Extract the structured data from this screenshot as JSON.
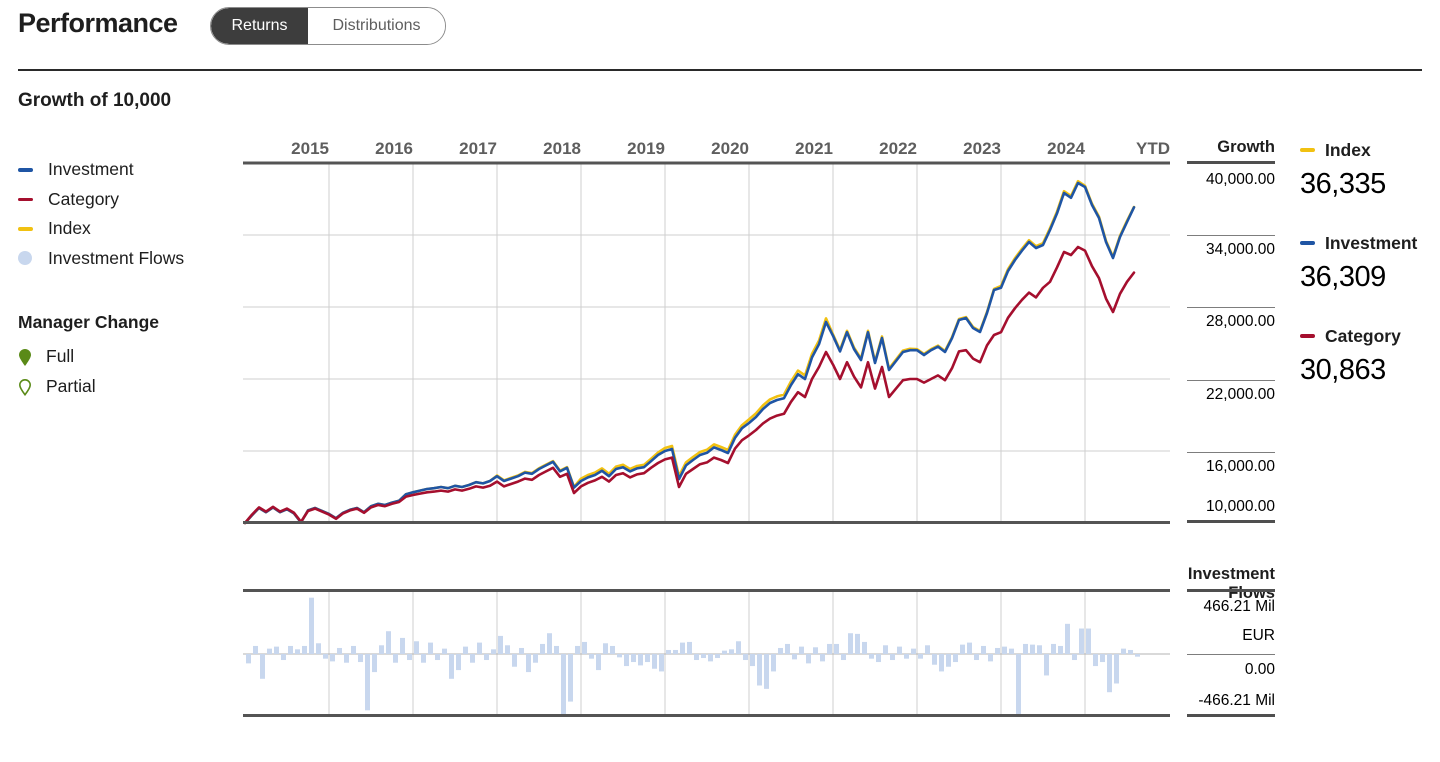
{
  "header": {
    "title": "Performance",
    "tabs": [
      {
        "label": "Returns",
        "selected": true
      },
      {
        "label": "Distributions",
        "selected": false
      }
    ]
  },
  "section": {
    "title": "Growth of 10,000"
  },
  "legend": {
    "items": [
      {
        "label": "Investment",
        "color": "#1f55a4",
        "type": "line"
      },
      {
        "label": "Category",
        "color": "#a50f2e",
        "type": "line"
      },
      {
        "label": "Index",
        "color": "#f1c111",
        "type": "line"
      },
      {
        "label": "Investment Flows",
        "color": "#c8d7ee",
        "type": "dot"
      }
    ]
  },
  "manager_change": {
    "title": "Manager Change",
    "color": "#5a8a17",
    "items": [
      {
        "label": "Full",
        "style": "filled"
      },
      {
        "label": "Partial",
        "style": "outline"
      }
    ]
  },
  "growth_axis": {
    "title": "Growth",
    "ticks": [
      "40,000.00",
      "34,000.00",
      "28,000.00",
      "22,000.00",
      "16,000.00",
      "10,000.00"
    ]
  },
  "flows_axis": {
    "title": "Investment Flows",
    "ticks": [
      "466.21 Mil",
      "EUR",
      "0.00",
      "-466.21 Mil"
    ]
  },
  "summary": [
    {
      "label": "Index",
      "value": "36,335",
      "color": "#f1c111"
    },
    {
      "label": "Investment",
      "value": "36,309",
      "color": "#1f55a4"
    },
    {
      "label": "Category",
      "value": "30,863",
      "color": "#a50f2e"
    }
  ],
  "chart_data": {
    "type": [
      "line",
      "bar"
    ],
    "x_labels": [
      "2015",
      "2016",
      "2017",
      "2018",
      "2019",
      "2020",
      "2021",
      "2022",
      "2023",
      "2024",
      "YTD"
    ],
    "x_monthly_start": "2015-01",
    "growth": {
      "ylim": [
        10000,
        40000
      ],
      "gridlines": [
        40000,
        34000,
        28000,
        22000,
        16000,
        10000
      ],
      "series": [
        {
          "name": "Index",
          "color": "#f1c111",
          "values": [
            10000,
            10650,
            11250,
            10900,
            11300,
            10900,
            11150,
            10800,
            10050,
            11050,
            11250,
            11000,
            10750,
            10400,
            10850,
            11100,
            11250,
            10900,
            11400,
            11600,
            11500,
            11700,
            11850,
            12400,
            12560,
            12700,
            12830,
            12900,
            13000,
            12900,
            13100,
            13000,
            13170,
            13400,
            13300,
            13500,
            13960,
            13560,
            13760,
            13960,
            14260,
            14160,
            14560,
            14860,
            15160,
            14360,
            14660,
            13010,
            13700,
            14000,
            14200,
            14550,
            14100,
            14700,
            14850,
            14500,
            14750,
            14850,
            15350,
            15870,
            16250,
            16420,
            13910,
            15050,
            15500,
            15920,
            16100,
            16550,
            16330,
            16080,
            17350,
            18150,
            18630,
            19130,
            19800,
            20300,
            20550,
            20700,
            21800,
            22700,
            22300,
            24100,
            25200,
            27050,
            25720,
            24420,
            26020,
            24620,
            23700,
            26020,
            23450,
            25540,
            22870,
            23620,
            24370,
            24520,
            24480,
            24080,
            24480,
            24780,
            24330,
            25480,
            27000,
            27160,
            26330,
            26000,
            27580,
            29500,
            29750,
            31150,
            32070,
            32850,
            33570,
            33070,
            33320,
            34570,
            35950,
            37650,
            37250,
            38480,
            38100,
            36600,
            35520,
            33520,
            32180,
            33930,
            35180,
            36335
          ]
        },
        {
          "name": "Investment",
          "color": "#1f55a4",
          "values": [
            10000,
            10650,
            11250,
            10900,
            11300,
            10900,
            11150,
            10800,
            10050,
            11050,
            11250,
            11000,
            10750,
            10400,
            10850,
            11100,
            11250,
            10900,
            11400,
            11600,
            11500,
            11700,
            11850,
            12400,
            12560,
            12700,
            12830,
            12900,
            13000,
            12900,
            13100,
            13000,
            13170,
            13400,
            13300,
            13500,
            13900,
            13500,
            13700,
            13900,
            14200,
            14100,
            14500,
            14800,
            15100,
            14300,
            14600,
            12950,
            13500,
            13800,
            14000,
            14350,
            13900,
            14500,
            14650,
            14300,
            14550,
            14650,
            15150,
            15670,
            16000,
            16170,
            13660,
            14800,
            15250,
            15670,
            15850,
            16300,
            16080,
            15830,
            17100,
            17900,
            18330,
            18830,
            19500,
            20000,
            20250,
            20400,
            21500,
            22400,
            22000,
            23800,
            24900,
            26750,
            25600,
            24300,
            25900,
            24500,
            23580,
            25900,
            23330,
            25420,
            22750,
            23500,
            24250,
            24400,
            24400,
            24000,
            24400,
            24700,
            24250,
            25400,
            26920,
            27080,
            26250,
            25920,
            27500,
            29420,
            29600,
            31000,
            31920,
            32700,
            33420,
            32920,
            33170,
            34420,
            35800,
            37500,
            37100,
            38330,
            38000,
            36500,
            35420,
            33420,
            32080,
            33830,
            35080,
            36309
          ]
        },
        {
          "name": "Category",
          "color": "#a50f2e",
          "values": [
            10000,
            10700,
            11300,
            10950,
            11350,
            10950,
            11200,
            10850,
            10100,
            11000,
            11200,
            10950,
            10700,
            10350,
            10800,
            11050,
            11200,
            10850,
            11300,
            11500,
            11400,
            11600,
            11750,
            12200,
            12330,
            12450,
            12560,
            12620,
            12700,
            12620,
            12800,
            12700,
            12850,
            13050,
            12950,
            13100,
            13450,
            13050,
            13250,
            13450,
            13700,
            13600,
            14000,
            14300,
            14600,
            13850,
            14100,
            12500,
            13050,
            13350,
            13550,
            13850,
            13450,
            14000,
            14150,
            13800,
            14050,
            14150,
            14600,
            15000,
            15300,
            15450,
            13000,
            14100,
            14500,
            14900,
            15050,
            15450,
            15250,
            15000,
            16200,
            16900,
            17300,
            17750,
            18300,
            18700,
            18950,
            19100,
            20100,
            20900,
            20500,
            22000,
            23000,
            24250,
            23200,
            22000,
            23400,
            22200,
            21300,
            23400,
            21200,
            23000,
            20500,
            21200,
            21900,
            22000,
            22000,
            21700,
            22000,
            22300,
            21900,
            22900,
            24300,
            24400,
            23700,
            23400,
            24800,
            25670,
            25900,
            27100,
            27900,
            28600,
            29200,
            28800,
            29600,
            30100,
            31300,
            32580,
            32330,
            33000,
            32700,
            31400,
            30400,
            28700,
            27580,
            29100,
            30100,
            30863
          ]
        }
      ]
    },
    "flows": {
      "name": "Investment Flows",
      "unit": "Mil EUR",
      "ylim": [
        -466.21,
        466.21
      ],
      "color": "#c8d7ee",
      "values": [
        -70,
        60,
        -185,
        40,
        55,
        -45,
        60,
        35,
        60,
        420,
        80,
        -35,
        -55,
        45,
        -65,
        60,
        -60,
        -420,
        -135,
        65,
        170,
        -65,
        120,
        -45,
        95,
        -65,
        85,
        -45,
        40,
        -185,
        -120,
        55,
        -65,
        85,
        -45,
        35,
        135,
        65,
        -95,
        45,
        -135,
        -65,
        75,
        155,
        60,
        -460,
        -355,
        60,
        90,
        -35,
        -120,
        80,
        60,
        -25,
        -90,
        -60,
        -85,
        -60,
        -110,
        -130,
        30,
        30,
        85,
        90,
        -45,
        -30,
        -55,
        -30,
        25,
        35,
        95,
        -45,
        -90,
        -235,
        -260,
        -130,
        45,
        75,
        -40,
        55,
        -70,
        50,
        -55,
        75,
        75,
        -45,
        155,
        150,
        90,
        -35,
        -60,
        65,
        -45,
        55,
        -35,
        40,
        -35,
        65,
        -80,
        -130,
        -95,
        -60,
        70,
        85,
        -45,
        60,
        -55,
        45,
        55,
        40,
        -460,
        75,
        70,
        65,
        -160,
        75,
        60,
        225,
        -45,
        190,
        190,
        -90,
        -60,
        -285,
        -220,
        40,
        30,
        -20
      ]
    }
  }
}
